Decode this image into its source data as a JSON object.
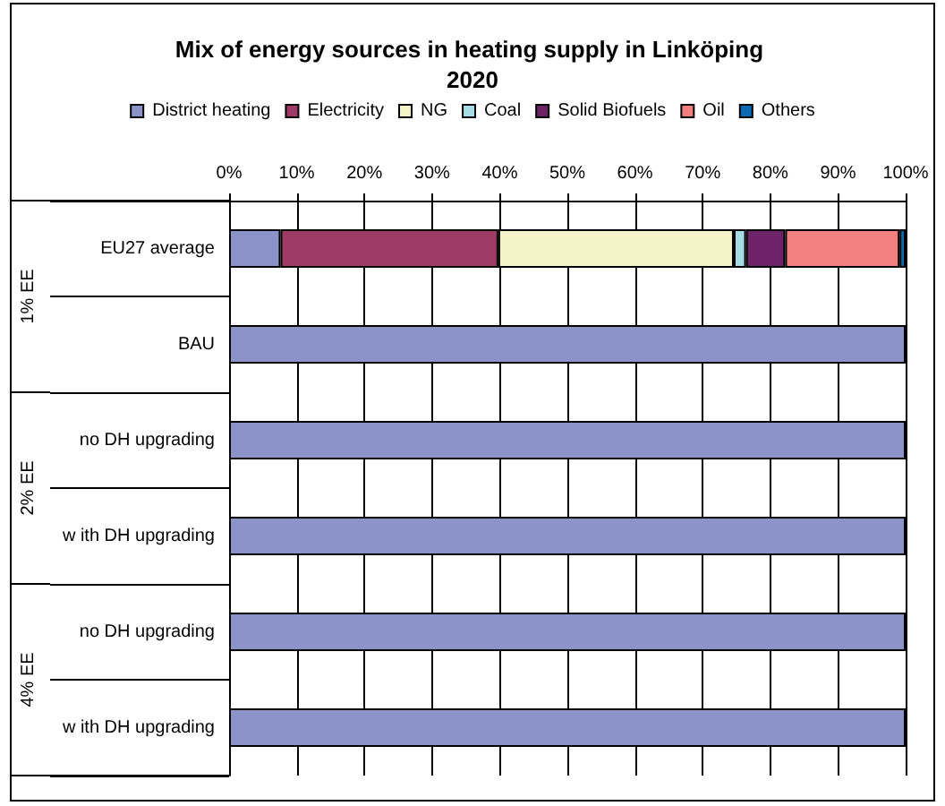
{
  "chart_data": {
    "type": "bar",
    "orientation": "horizontal",
    "stacked": true,
    "title": "Mix of energy sources in heating supply in Linköping 2020",
    "categories": [
      "EU27 average",
      "BAU",
      "no DH upgrading",
      "w ith DH upgrading",
      "no DH upgrading",
      "w ith DH upgrading"
    ],
    "series": [
      {
        "name": "District heating",
        "color": "#8b93c8",
        "values": [
          7.6,
          100,
          100,
          100,
          100,
          100
        ]
      },
      {
        "name": "Electricity",
        "color": "#9e3a66",
        "values": [
          32.2,
          null,
          null,
          null,
          null,
          null
        ]
      },
      {
        "name": "NG",
        "color": "#f4f4c8",
        "values": [
          34.8,
          null,
          null,
          null,
          null,
          null
        ]
      },
      {
        "name": "Coal",
        "color": "#a8dce4",
        "values": [
          1.8,
          null,
          null,
          null,
          null,
          null
        ]
      },
      {
        "name": "Solid Biofuels",
        "color": "#6e2268",
        "values": [
          5.8,
          null,
          null,
          null,
          null,
          null
        ]
      },
      {
        "name": "Oil",
        "color": "#f28080",
        "values": [
          16.9,
          null,
          null,
          null,
          null,
          null
        ]
      },
      {
        "name": "Others",
        "color": "#0b6bb0",
        "values": [
          0.9,
          null,
          null,
          null,
          null,
          null
        ]
      }
    ],
    "xlim": [
      0,
      100
    ],
    "xticks": [
      {
        "value": 0,
        "label": "0%"
      },
      {
        "value": 10,
        "label": "10%"
      },
      {
        "value": 20,
        "label": "20%"
      },
      {
        "value": 30,
        "label": "30%"
      },
      {
        "value": 40,
        "label": "40%"
      },
      {
        "value": 50,
        "label": "50%"
      },
      {
        "value": 60,
        "label": "60%"
      },
      {
        "value": 70,
        "label": "70%"
      },
      {
        "value": 80,
        "label": "80%"
      },
      {
        "value": 90,
        "label": "90%"
      },
      {
        "value": 100,
        "label": "100%"
      }
    ],
    "grid": "x",
    "legend": "top",
    "annotations": [
      "1% EE",
      "2% EE",
      "4% EE"
    ]
  }
}
